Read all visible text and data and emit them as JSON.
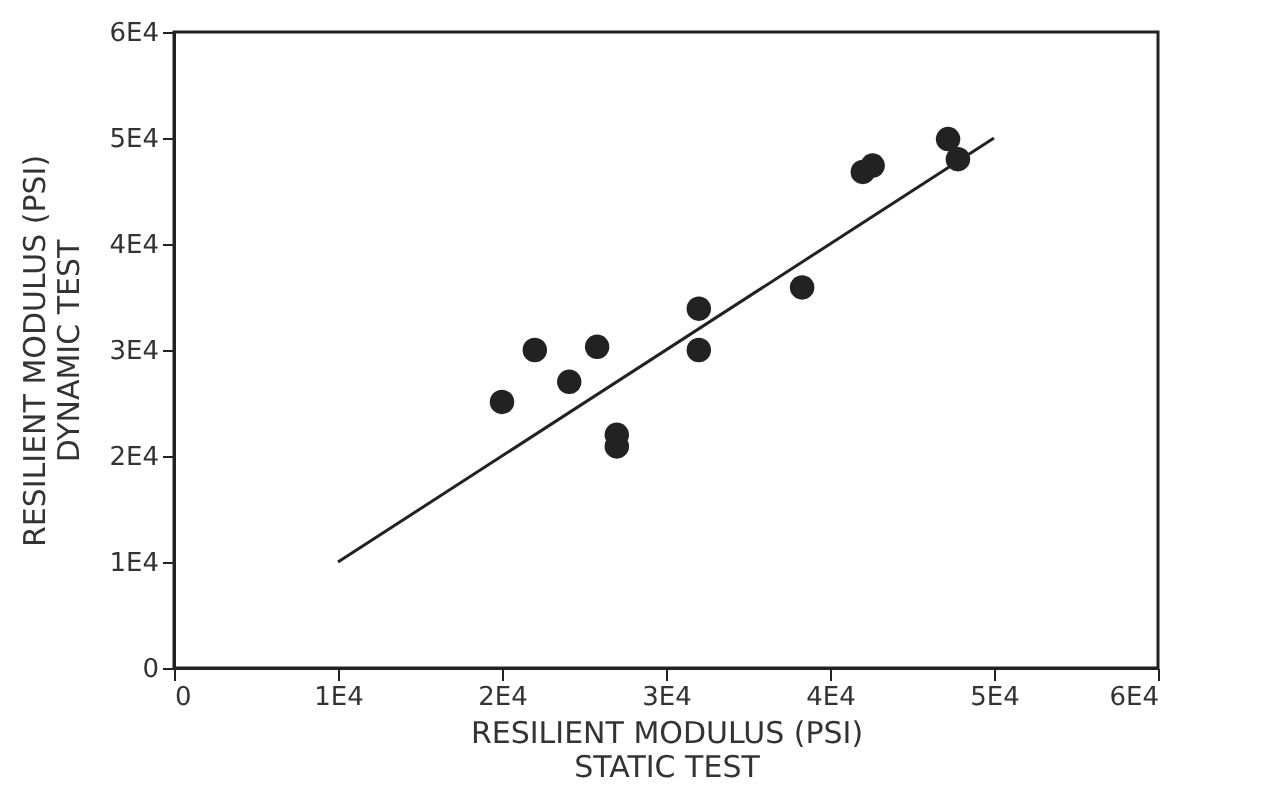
{
  "chart_data": {
    "type": "scatter",
    "xlabel": "RESILIENT MODULUS (PSI)\nSTATIC TEST",
    "ylabel": "RESILIENT MODULUS (PSI)\nDYNAMIC TEST",
    "xlim": [
      0,
      60000
    ],
    "ylim": [
      0,
      60000
    ],
    "xticks": [
      0,
      {
        "value": 10000,
        "label": "1E4"
      },
      {
        "value": 20000,
        "label": "2E4"
      },
      {
        "value": 30000,
        "label": "3E4"
      },
      {
        "value": 40000,
        "label": "4E4"
      },
      {
        "value": 50000,
        "label": "5E4"
      },
      {
        "value": 60000,
        "label": "6E4"
      }
    ],
    "yticks": [
      0,
      {
        "value": 10000,
        "label": "1E4"
      },
      {
        "value": 20000,
        "label": "2E4"
      },
      {
        "value": 30000,
        "label": "3E4"
      },
      {
        "value": 40000,
        "label": "4E4"
      },
      {
        "value": 50000,
        "label": "5E4"
      },
      {
        "value": 60000,
        "label": "6E4"
      }
    ],
    "grid": false,
    "series": [
      {
        "color": "#222222",
        "marker": "circle",
        "x": [
          20000,
          22000,
          24100,
          25800,
          27000,
          27000,
          32000,
          32000,
          38300,
          42000,
          42600,
          47200,
          47800
        ],
        "values": [
          25100,
          30000,
          27000,
          30300,
          22000,
          20900,
          33900,
          30000,
          35900,
          46800,
          47400,
          49900,
          48000
        ]
      },
      {
        "type": "line",
        "color": "#222222",
        "marker": "none",
        "line_style": "solid",
        "x": [
          10000,
          50000
        ],
        "values": [
          10000,
          50000
        ]
      }
    ]
  }
}
